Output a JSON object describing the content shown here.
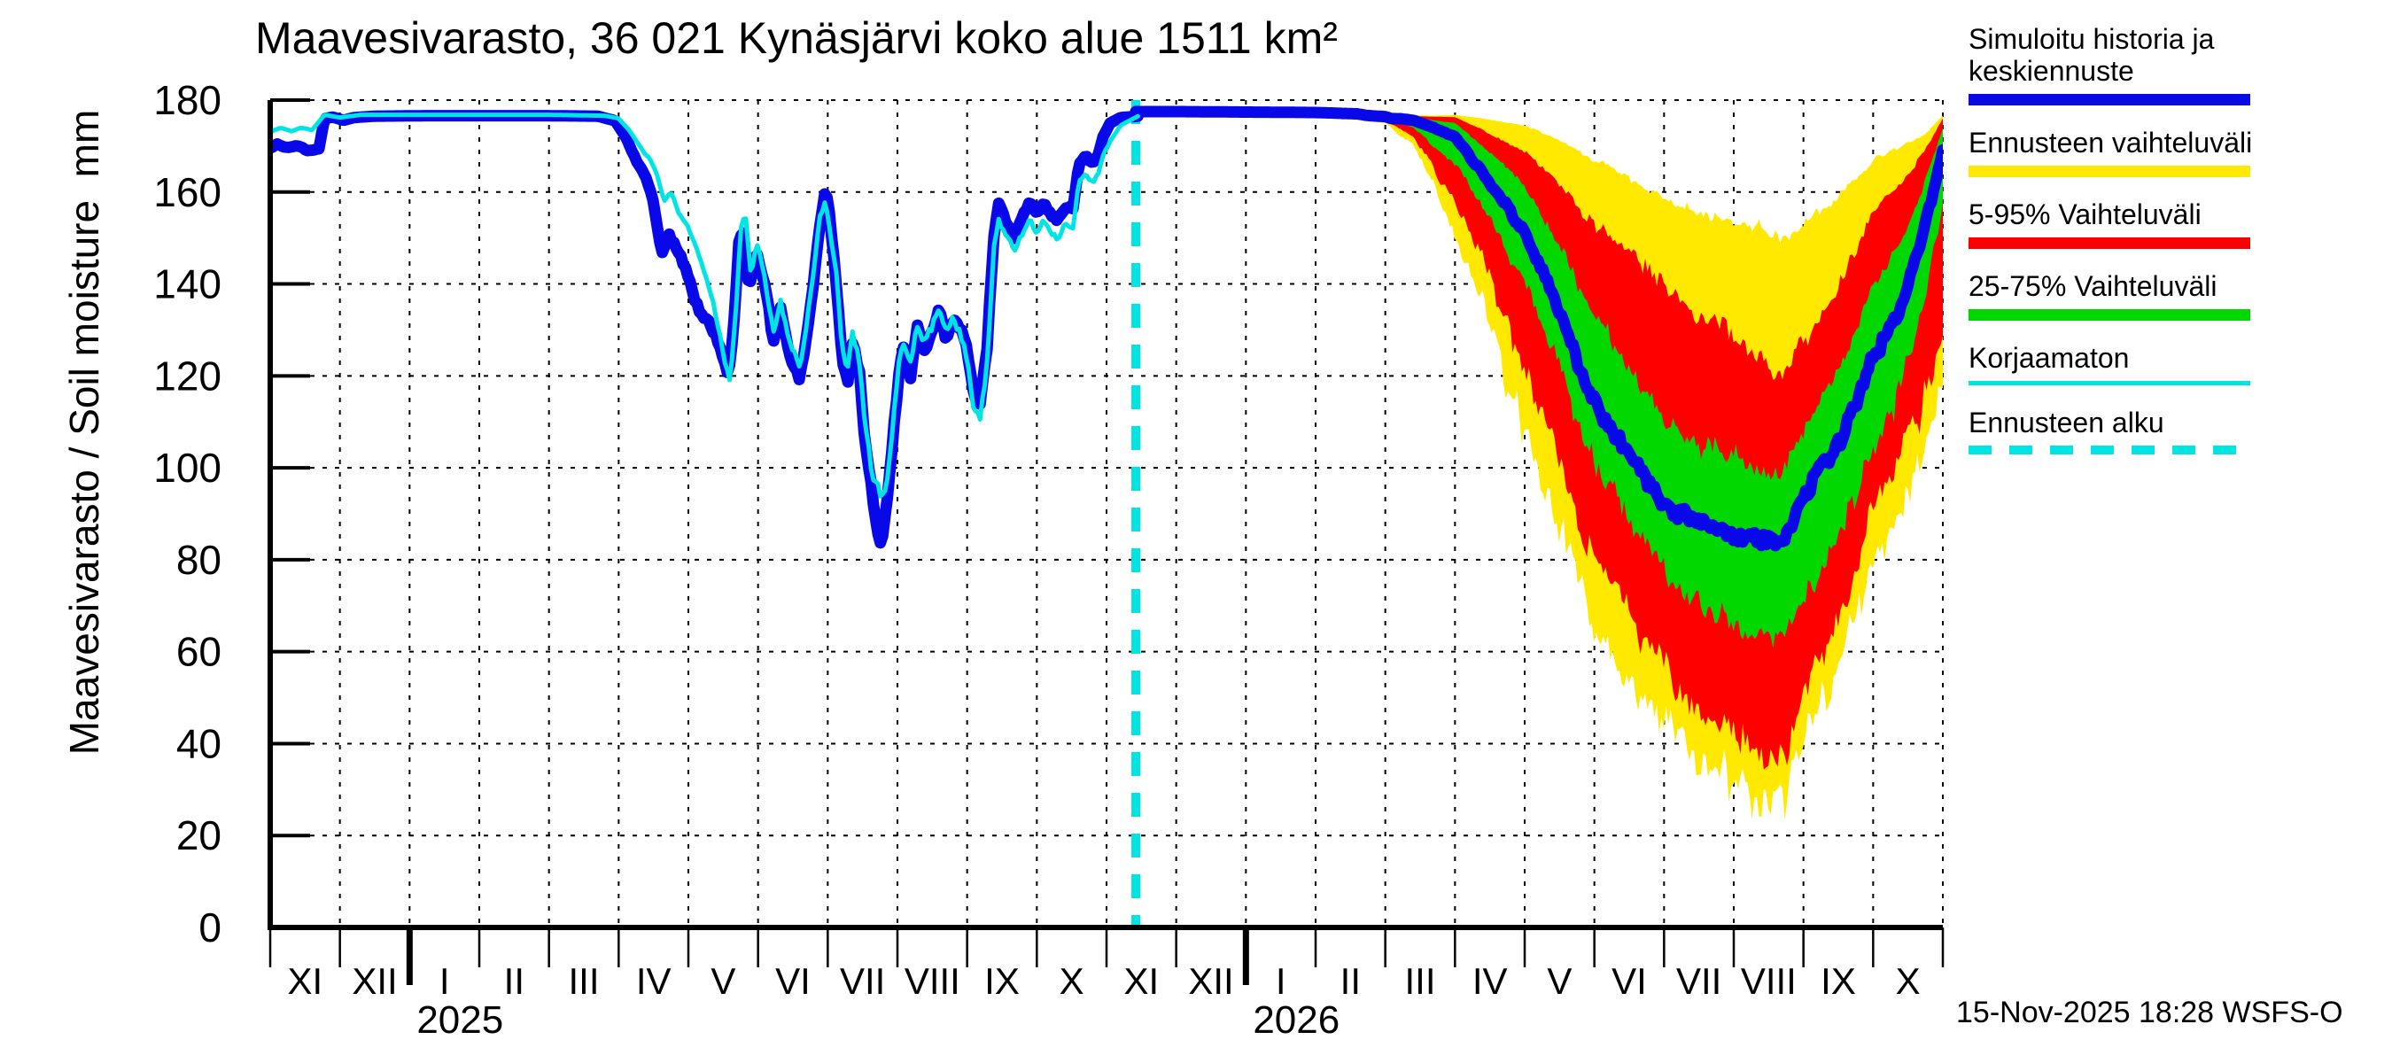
{
  "title": "Maavesivarasto, 36 021 Kynäsjärvi koko alue 1511 km²",
  "footer": {
    "timestamp": "15-Nov-2025 18:28 WSFS-O"
  },
  "colors": {
    "median_blue": "#0808e8",
    "range_yellow": "#ffe900",
    "range_red": "#ff0000",
    "range_green": "#00d800",
    "uncorrected_cyan": "#00e4e4",
    "grid_black": "#000000",
    "background": "#ffffff"
  },
  "y_axis": {
    "label": "Maavesivarasto / Soil moisture  mm",
    "ticks": [
      0,
      20,
      40,
      60,
      80,
      100,
      120,
      140,
      160,
      180
    ],
    "min": 0,
    "max": 180
  },
  "x_axis": {
    "month_labels": [
      "XI",
      "XII",
      "I",
      "II",
      "III",
      "IV",
      "V",
      "VI",
      "VII",
      "VIII",
      "IX",
      "X",
      "XI",
      "XII",
      "I",
      "II",
      "III",
      "IV",
      "V",
      "VI",
      "VII",
      "VIII",
      "IX",
      "X"
    ],
    "year_labels": [
      {
        "text": "2025",
        "month_boundary_index": 2
      },
      {
        "text": "2026",
        "month_boundary_index": 14
      }
    ]
  },
  "legend": [
    {
      "id": "simulated-history-median",
      "label": "Simuloitu historia ja keskiennuste",
      "color": "#0808e8",
      "style": "thick"
    },
    {
      "id": "forecast-range",
      "label": "Ennusteen vaihteluväli",
      "color": "#ffe900",
      "style": "thick"
    },
    {
      "id": "range-5-95",
      "label": "5-95% Vaihteluväli",
      "color": "#ff0000",
      "style": "thick"
    },
    {
      "id": "range-25-75",
      "label": "25-75% Vaihteluväli",
      "color": "#00d800",
      "style": "thick"
    },
    {
      "id": "uncorrected",
      "label": "Korjaamaton",
      "color": "#00e4e4",
      "style": "thin"
    },
    {
      "id": "forecast-start",
      "label": "Ennusteen alku",
      "color": "#00e4e4",
      "style": "dashed"
    }
  ],
  "chart_data": {
    "type": "line",
    "title": "Maavesivarasto, 36 021 Kynäsjärvi koko alue 1511 km²",
    "ylabel": "Maavesivarasto / Soil moisture  mm",
    "ylim": [
      0,
      180
    ],
    "x_unit": "months since 1 Nov 2024 (0 = Nov 2024, 24 = end Oct 2026)",
    "months_total": 24,
    "grid": "dashed both axes, every 20 mm and every month",
    "legend_position": "outside right",
    "forecast_start_x": 12.42,
    "series": [
      {
        "name": "history_median",
        "legend": "Simuloitu historia ja keskiennuste",
        "color": "#0808e8",
        "width": 13,
        "jitter": 1.6,
        "seed": 3.1,
        "points": [
          [
            0,
            169.5
          ],
          [
            0.1,
            170.5
          ],
          [
            0.25,
            169.5
          ],
          [
            0.4,
            170
          ],
          [
            0.55,
            169
          ],
          [
            0.7,
            169.5
          ],
          [
            0.78,
            176
          ],
          [
            0.9,
            176.3
          ],
          [
            1.05,
            175.6
          ],
          [
            1.2,
            176.2
          ],
          [
            1.5,
            176.5
          ],
          [
            2.2,
            176.6
          ],
          [
            3,
            176.6
          ],
          [
            4,
            176.6
          ],
          [
            4.7,
            176.5
          ],
          [
            4.95,
            175.5
          ],
          [
            5.1,
            172
          ],
          [
            5.25,
            167
          ],
          [
            5.4,
            163
          ],
          [
            5.5,
            158
          ],
          [
            5.62,
            147
          ],
          [
            5.72,
            151
          ],
          [
            5.85,
            147
          ],
          [
            6,
            141
          ],
          [
            6.15,
            134
          ],
          [
            6.3,
            132
          ],
          [
            6.45,
            126
          ],
          [
            6.57,
            120
          ],
          [
            6.65,
            131
          ],
          [
            6.72,
            149
          ],
          [
            6.78,
            152
          ],
          [
            6.87,
            139
          ],
          [
            6.97,
            147
          ],
          [
            7.1,
            140
          ],
          [
            7.22,
            128
          ],
          [
            7.32,
            135
          ],
          [
            7.45,
            125
          ],
          [
            7.58,
            119
          ],
          [
            7.68,
            127
          ],
          [
            7.78,
            139
          ],
          [
            7.88,
            152
          ],
          [
            7.97,
            161
          ],
          [
            8.03,
            155
          ],
          [
            8.12,
            140
          ],
          [
            8.2,
            124
          ],
          [
            8.28,
            118
          ],
          [
            8.35,
            127
          ],
          [
            8.45,
            121
          ],
          [
            8.55,
            104
          ],
          [
            8.65,
            93
          ],
          [
            8.72,
            86
          ],
          [
            8.78,
            83
          ],
          [
            8.85,
            93
          ],
          [
            8.92,
            104
          ],
          [
            9,
            117
          ],
          [
            9.08,
            126
          ],
          [
            9.18,
            120
          ],
          [
            9.28,
            131
          ],
          [
            9.38,
            126
          ],
          [
            9.5,
            130
          ],
          [
            9.6,
            134
          ],
          [
            9.7,
            128
          ],
          [
            9.8,
            133
          ],
          [
            9.9,
            130
          ],
          [
            10,
            126
          ],
          [
            10.08,
            117
          ],
          [
            10.18,
            113
          ],
          [
            10.28,
            125
          ],
          [
            10.38,
            150
          ],
          [
            10.45,
            158
          ],
          [
            10.55,
            154
          ],
          [
            10.68,
            150
          ],
          [
            10.8,
            155
          ],
          [
            10.9,
            158
          ],
          [
            11,
            155
          ],
          [
            11.1,
            158
          ],
          [
            11.2,
            155
          ],
          [
            11.3,
            154
          ],
          [
            11.42,
            157
          ],
          [
            11.52,
            156
          ],
          [
            11.6,
            166
          ],
          [
            11.7,
            168
          ],
          [
            11.8,
            166
          ],
          [
            11.88,
            168
          ],
          [
            11.95,
            172
          ],
          [
            12.05,
            175
          ],
          [
            12.2,
            176.2
          ],
          [
            12.45,
            176.5
          ]
        ]
      },
      {
        "name": "korjaamaton",
        "legend": "Korjaamaton",
        "color": "#00e4e4",
        "width": 5,
        "jitter": 1.6,
        "seed": 7.7,
        "points": [
          [
            0,
            173
          ],
          [
            0.15,
            174
          ],
          [
            0.3,
            173.2
          ],
          [
            0.45,
            174
          ],
          [
            0.6,
            173.5
          ],
          [
            0.78,
            176.8
          ],
          [
            1,
            176.2
          ],
          [
            1.3,
            176.8
          ],
          [
            2.2,
            176.8
          ],
          [
            3,
            176.8
          ],
          [
            4,
            176.8
          ],
          [
            4.8,
            176.6
          ],
          [
            5,
            176
          ],
          [
            5.15,
            173.5
          ],
          [
            5.3,
            170
          ],
          [
            5.45,
            167
          ],
          [
            5.55,
            164
          ],
          [
            5.65,
            158
          ],
          [
            5.75,
            160
          ],
          [
            5.88,
            155
          ],
          [
            6,
            152
          ],
          [
            6.12,
            148
          ],
          [
            6.25,
            142
          ],
          [
            6.4,
            133
          ],
          [
            6.52,
            124
          ],
          [
            6.6,
            118
          ],
          [
            6.68,
            133
          ],
          [
            6.75,
            152
          ],
          [
            6.82,
            155
          ],
          [
            6.9,
            141
          ],
          [
            6.98,
            149
          ],
          [
            7.1,
            141
          ],
          [
            7.22,
            130
          ],
          [
            7.32,
            136
          ],
          [
            7.45,
            127
          ],
          [
            7.58,
            122
          ],
          [
            7.68,
            128
          ],
          [
            7.78,
            141
          ],
          [
            7.88,
            154
          ],
          [
            7.97,
            158
          ],
          [
            8.05,
            150
          ],
          [
            8.13,
            141
          ],
          [
            8.2,
            127
          ],
          [
            8.28,
            121
          ],
          [
            8.35,
            129
          ],
          [
            8.45,
            123
          ],
          [
            8.55,
            108
          ],
          [
            8.65,
            98
          ],
          [
            8.76,
            94
          ],
          [
            8.85,
            97
          ],
          [
            8.92,
            107
          ],
          [
            9,
            120
          ],
          [
            9.08,
            128
          ],
          [
            9.18,
            122
          ],
          [
            9.28,
            132
          ],
          [
            9.38,
            127
          ],
          [
            9.5,
            131
          ],
          [
            9.6,
            135
          ],
          [
            9.7,
            129
          ],
          [
            9.8,
            133
          ],
          [
            9.9,
            129
          ],
          [
            10,
            124
          ],
          [
            10.08,
            114
          ],
          [
            10.18,
            110
          ],
          [
            10.28,
            122
          ],
          [
            10.38,
            147
          ],
          [
            10.45,
            154
          ],
          [
            10.55,
            151
          ],
          [
            10.68,
            147
          ],
          [
            10.8,
            151
          ],
          [
            10.9,
            154
          ],
          [
            11,
            151
          ],
          [
            11.1,
            154
          ],
          [
            11.2,
            151
          ],
          [
            11.3,
            150
          ],
          [
            11.42,
            153
          ],
          [
            11.52,
            152
          ],
          [
            11.6,
            162
          ],
          [
            11.7,
            164
          ],
          [
            11.8,
            162
          ],
          [
            11.88,
            164
          ],
          [
            11.95,
            168
          ],
          [
            12.05,
            171
          ],
          [
            12.2,
            174.5
          ],
          [
            12.45,
            176.5
          ]
        ]
      }
    ],
    "forecast": {
      "x": [
        12.42,
        13,
        14,
        15,
        15.6,
        16,
        16.4,
        16.7,
        17,
        17.4,
        17.7,
        18,
        18.4,
        18.7,
        19,
        19.4,
        19.7,
        20,
        20.4,
        20.7,
        21,
        21.4,
        21.7,
        22,
        22.4,
        22.7,
        23,
        23.4,
        23.7,
        24
      ],
      "median": {
        "name": "forecast_median",
        "color": "#0808e8",
        "width": 13,
        "jitter": 2.2,
        "seed": 11.3,
        "values": [
          176.5,
          176.6,
          176.7,
          176.7,
          176.6,
          176.4,
          175.6,
          174,
          172,
          164,
          158,
          151,
          138,
          126,
          114,
          105,
          98,
          92,
          89,
          87,
          85,
          84.5,
          84,
          94,
          103,
          112,
          124,
          135,
          150,
          169
        ]
      },
      "bands": [
        {
          "name": "ennusteen_vaihteluvali_full_range",
          "color": "#ffe900",
          "jitter_lo": 6,
          "jitter_hi": 4.5,
          "seed": 21.9,
          "lo": [
            176.5,
            176.5,
            176.4,
            176.3,
            176,
            175,
            170,
            162,
            151,
            135,
            121,
            108,
            92,
            78,
            66,
            57,
            50,
            45,
            38,
            35,
            32,
            28,
            27,
            40,
            54,
            66,
            80,
            92,
            104,
            116
          ],
          "hi": [
            176.8,
            176.9,
            176.9,
            176.9,
            176.9,
            176.8,
            176.7,
            176.6,
            176.8,
            176,
            175.2,
            174.5,
            172,
            169.5,
            167,
            164,
            161,
            158,
            156,
            155,
            154,
            152,
            150,
            153,
            158,
            162,
            167,
            170,
            172,
            176.6
          ]
        },
        {
          "name": "vaihteluvali_5_95",
          "color": "#ff0000",
          "jitter_lo": 5,
          "jitter_hi": 4.5,
          "seed": 33.4,
          "lo": [
            176.5,
            176.5,
            176.5,
            176.4,
            176.2,
            175.5,
            172,
            165,
            157,
            146,
            133,
            121,
            105,
            92,
            81,
            71,
            63,
            57,
            49,
            45,
            41,
            37,
            35,
            52,
            63,
            76,
            93,
            103,
            113,
            127
          ],
          "hi": [
            176.7,
            176.8,
            176.8,
            176.8,
            176.8,
            176.7,
            176.5,
            176.4,
            176.3,
            173.5,
            171,
            169,
            163,
            158,
            153,
            148,
            144,
            140,
            134,
            131,
            128,
            124,
            120,
            127,
            137,
            146,
            156,
            162,
            168,
            176
          ]
        },
        {
          "name": "vaihteluvali_25_75",
          "color": "#00d800",
          "jitter_lo": 4,
          "jitter_hi": 3.5,
          "seed": 47.2,
          "lo": [
            176.5,
            176.6,
            176.6,
            176.5,
            176.4,
            176,
            174,
            170,
            166,
            157,
            148,
            139,
            126,
            113,
            101,
            92,
            84,
            77,
            71,
            68,
            66,
            63,
            62,
            70,
            82,
            92,
            104,
            117,
            133,
            158
          ],
          "hi": [
            176.6,
            176.7,
            176.7,
            176.7,
            176.7,
            176.6,
            176.2,
            175.6,
            175,
            170,
            166,
            161,
            151,
            142,
            133,
            124,
            117,
            110,
            106,
            104,
            102,
            100,
            99,
            108,
            118,
            128,
            140,
            149,
            160,
            174
          ]
        }
      ]
    }
  }
}
